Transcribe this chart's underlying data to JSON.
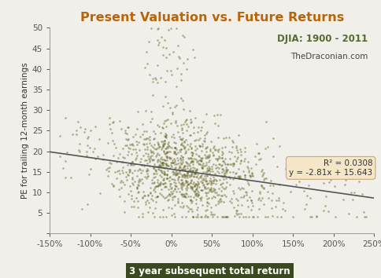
{
  "title": "Present Valuation vs. Future Returns",
  "subtitle1": "DJIA: 1900 - 2011",
  "subtitle2": "TheDraconian.com",
  "xlabel": "3 year subsequent total return",
  "ylabel": "PE for trailing 12-month earnings",
  "title_color": "#B8650A",
  "subtitle1_color": "#556B2F",
  "subtitle2_color": "#444444",
  "dot_color": "#6B6B2B",
  "line_color": "#555555",
  "xlabel_bg": "#3B4A1E",
  "xlabel_text_color": "#FFFFFF",
  "r2_box_bg": "#F5E6C8",
  "r2_text": "R² = 0.0308",
  "eq_text": "y = -2.81x + 15.643",
  "slope": -2.81,
  "intercept": 15.643,
  "xlim": [
    -1.5,
    2.5
  ],
  "ylim": [
    0,
    50
  ],
  "xticks": [
    -1.5,
    -1.0,
    -0.5,
    0.0,
    0.5,
    1.0,
    1.5,
    2.0,
    2.5
  ],
  "xtick_labels": [
    "-150%",
    "-100%",
    "-50%",
    "0%",
    "50%",
    "100%",
    "150%",
    "200%",
    "250%"
  ],
  "yticks": [
    0,
    5,
    10,
    15,
    20,
    25,
    30,
    35,
    40,
    45,
    50
  ],
  "seed": 42,
  "n_points": 1300,
  "background_color": "#F0EFEA"
}
